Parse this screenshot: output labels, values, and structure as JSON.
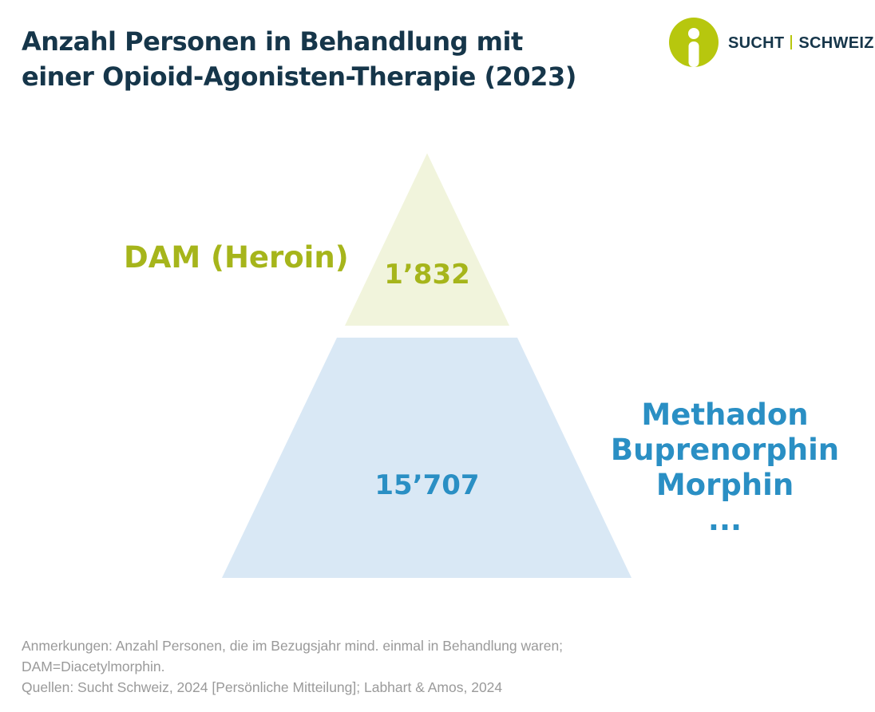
{
  "title": {
    "line1": "Anzahl Personen in Behandlung mit",
    "line2": "einer Opioid-Agonisten-Therapie (2023)"
  },
  "logo": {
    "icon": "person-circle-icon",
    "text_left": "SUCHT",
    "text_right": "SCHWEIZ",
    "colors": {
      "mark": "#b7c70e",
      "text": "#16364a"
    }
  },
  "chart_data": {
    "type": "pyramid",
    "tiers": [
      {
        "label_lines": [
          "DAM (Heroin)"
        ],
        "value": 1832,
        "value_label": "1’832",
        "label_color": "#a6b51b",
        "fill": "#f1f4dc"
      },
      {
        "label_lines": [
          "Methadon",
          "Buprenorphin",
          "Morphin",
          "..."
        ],
        "value": 15707,
        "value_label": "15’707",
        "label_color": "#2a8fc4",
        "fill": "#d9e8f5"
      }
    ]
  },
  "notes": {
    "line1": "Anmerkungen: Anzahl Personen, die im Bezugsjahr mind. einmal in Behandlung waren;",
    "line2": "DAM=Diacetylmorphin.",
    "line3": "Quellen: Sucht Schweiz, 2024 [Persönliche Mitteilung]; Labhart & Amos, 2024"
  }
}
